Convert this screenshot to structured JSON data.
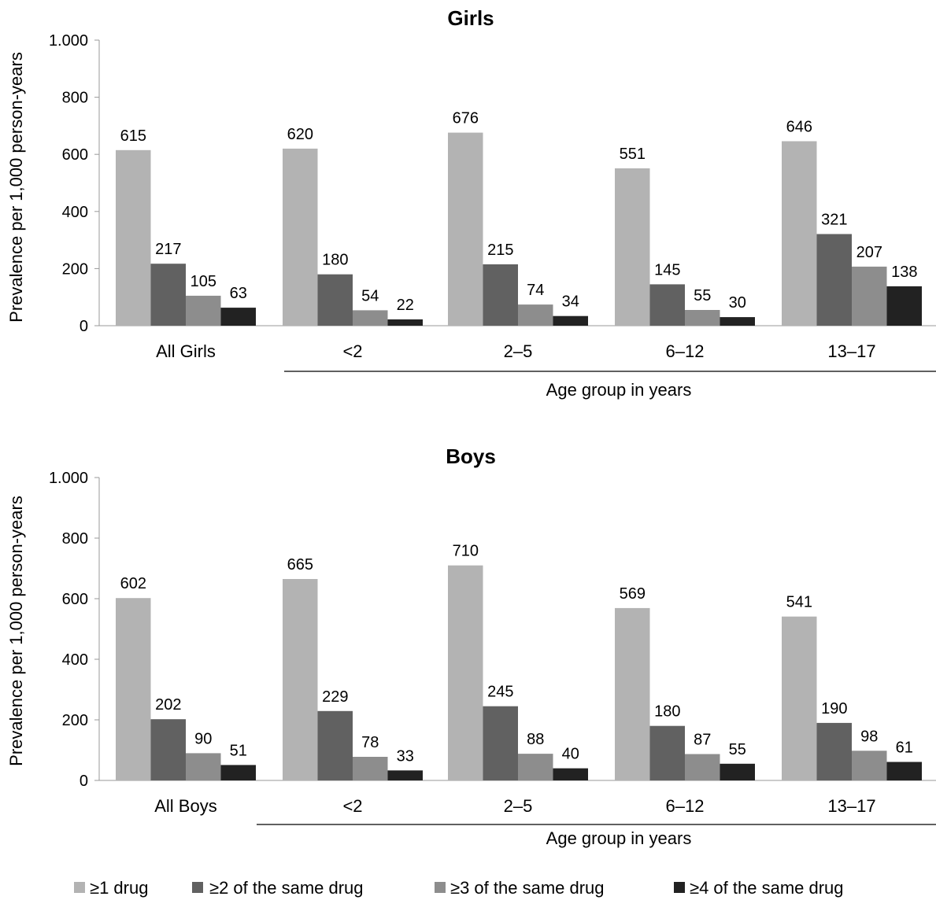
{
  "colors": {
    "series": [
      "#b3b3b3",
      "#616161",
      "#8d8d8d",
      "#222222"
    ],
    "axis": "#999999",
    "text": "#000000"
  },
  "legend": {
    "position": "bottom",
    "labels": [
      "≥1 drug",
      "≥2 of the same drug",
      "≥3 of the same drug",
      "≥4 of the same drug"
    ]
  },
  "chart_data": [
    {
      "type": "bar",
      "title": "Girls",
      "ylabel": "Prevalence per 1,000 person-years",
      "xlabel": "Age group in years",
      "ylim": [
        0,
        1000
      ],
      "yticks": [
        0,
        200,
        400,
        600,
        800,
        1000
      ],
      "ytick_labels": [
        "0",
        "200",
        "400",
        "600",
        "800",
        "1.000"
      ],
      "categories": [
        "All Girls",
        "<2",
        "2–5",
        "6–12",
        "13–17"
      ],
      "series": [
        {
          "name": "≥1 drug",
          "values": [
            615,
            620,
            676,
            551,
            646
          ]
        },
        {
          "name": "≥2 of the same drug",
          "values": [
            217,
            180,
            215,
            145,
            321
          ]
        },
        {
          "name": "≥3 of the same drug",
          "values": [
            105,
            54,
            74,
            55,
            207
          ]
        },
        {
          "name": "≥4 of the same drug",
          "values": [
            63,
            22,
            34,
            30,
            138
          ]
        }
      ],
      "grid": false
    },
    {
      "type": "bar",
      "title": "Boys",
      "ylabel": "Prevalence per 1,000 person-years",
      "xlabel": "Age group in years",
      "ylim": [
        0,
        1000
      ],
      "yticks": [
        0,
        200,
        400,
        600,
        800,
        1000
      ],
      "ytick_labels": [
        "0",
        "200",
        "400",
        "600",
        "800",
        "1.000"
      ],
      "categories": [
        "All Boys",
        "<2",
        "2–5",
        "6–12",
        "13–17"
      ],
      "series": [
        {
          "name": "≥1 drug",
          "values": [
            602,
            665,
            710,
            569,
            541
          ]
        },
        {
          "name": "≥2 of the same drug",
          "values": [
            202,
            229,
            245,
            180,
            190
          ]
        },
        {
          "name": "≥3 of the same drug",
          "values": [
            90,
            78,
            88,
            87,
            98
          ]
        },
        {
          "name": "≥4 of the same drug",
          "values": [
            51,
            33,
            40,
            55,
            61
          ]
        }
      ],
      "grid": false
    }
  ]
}
